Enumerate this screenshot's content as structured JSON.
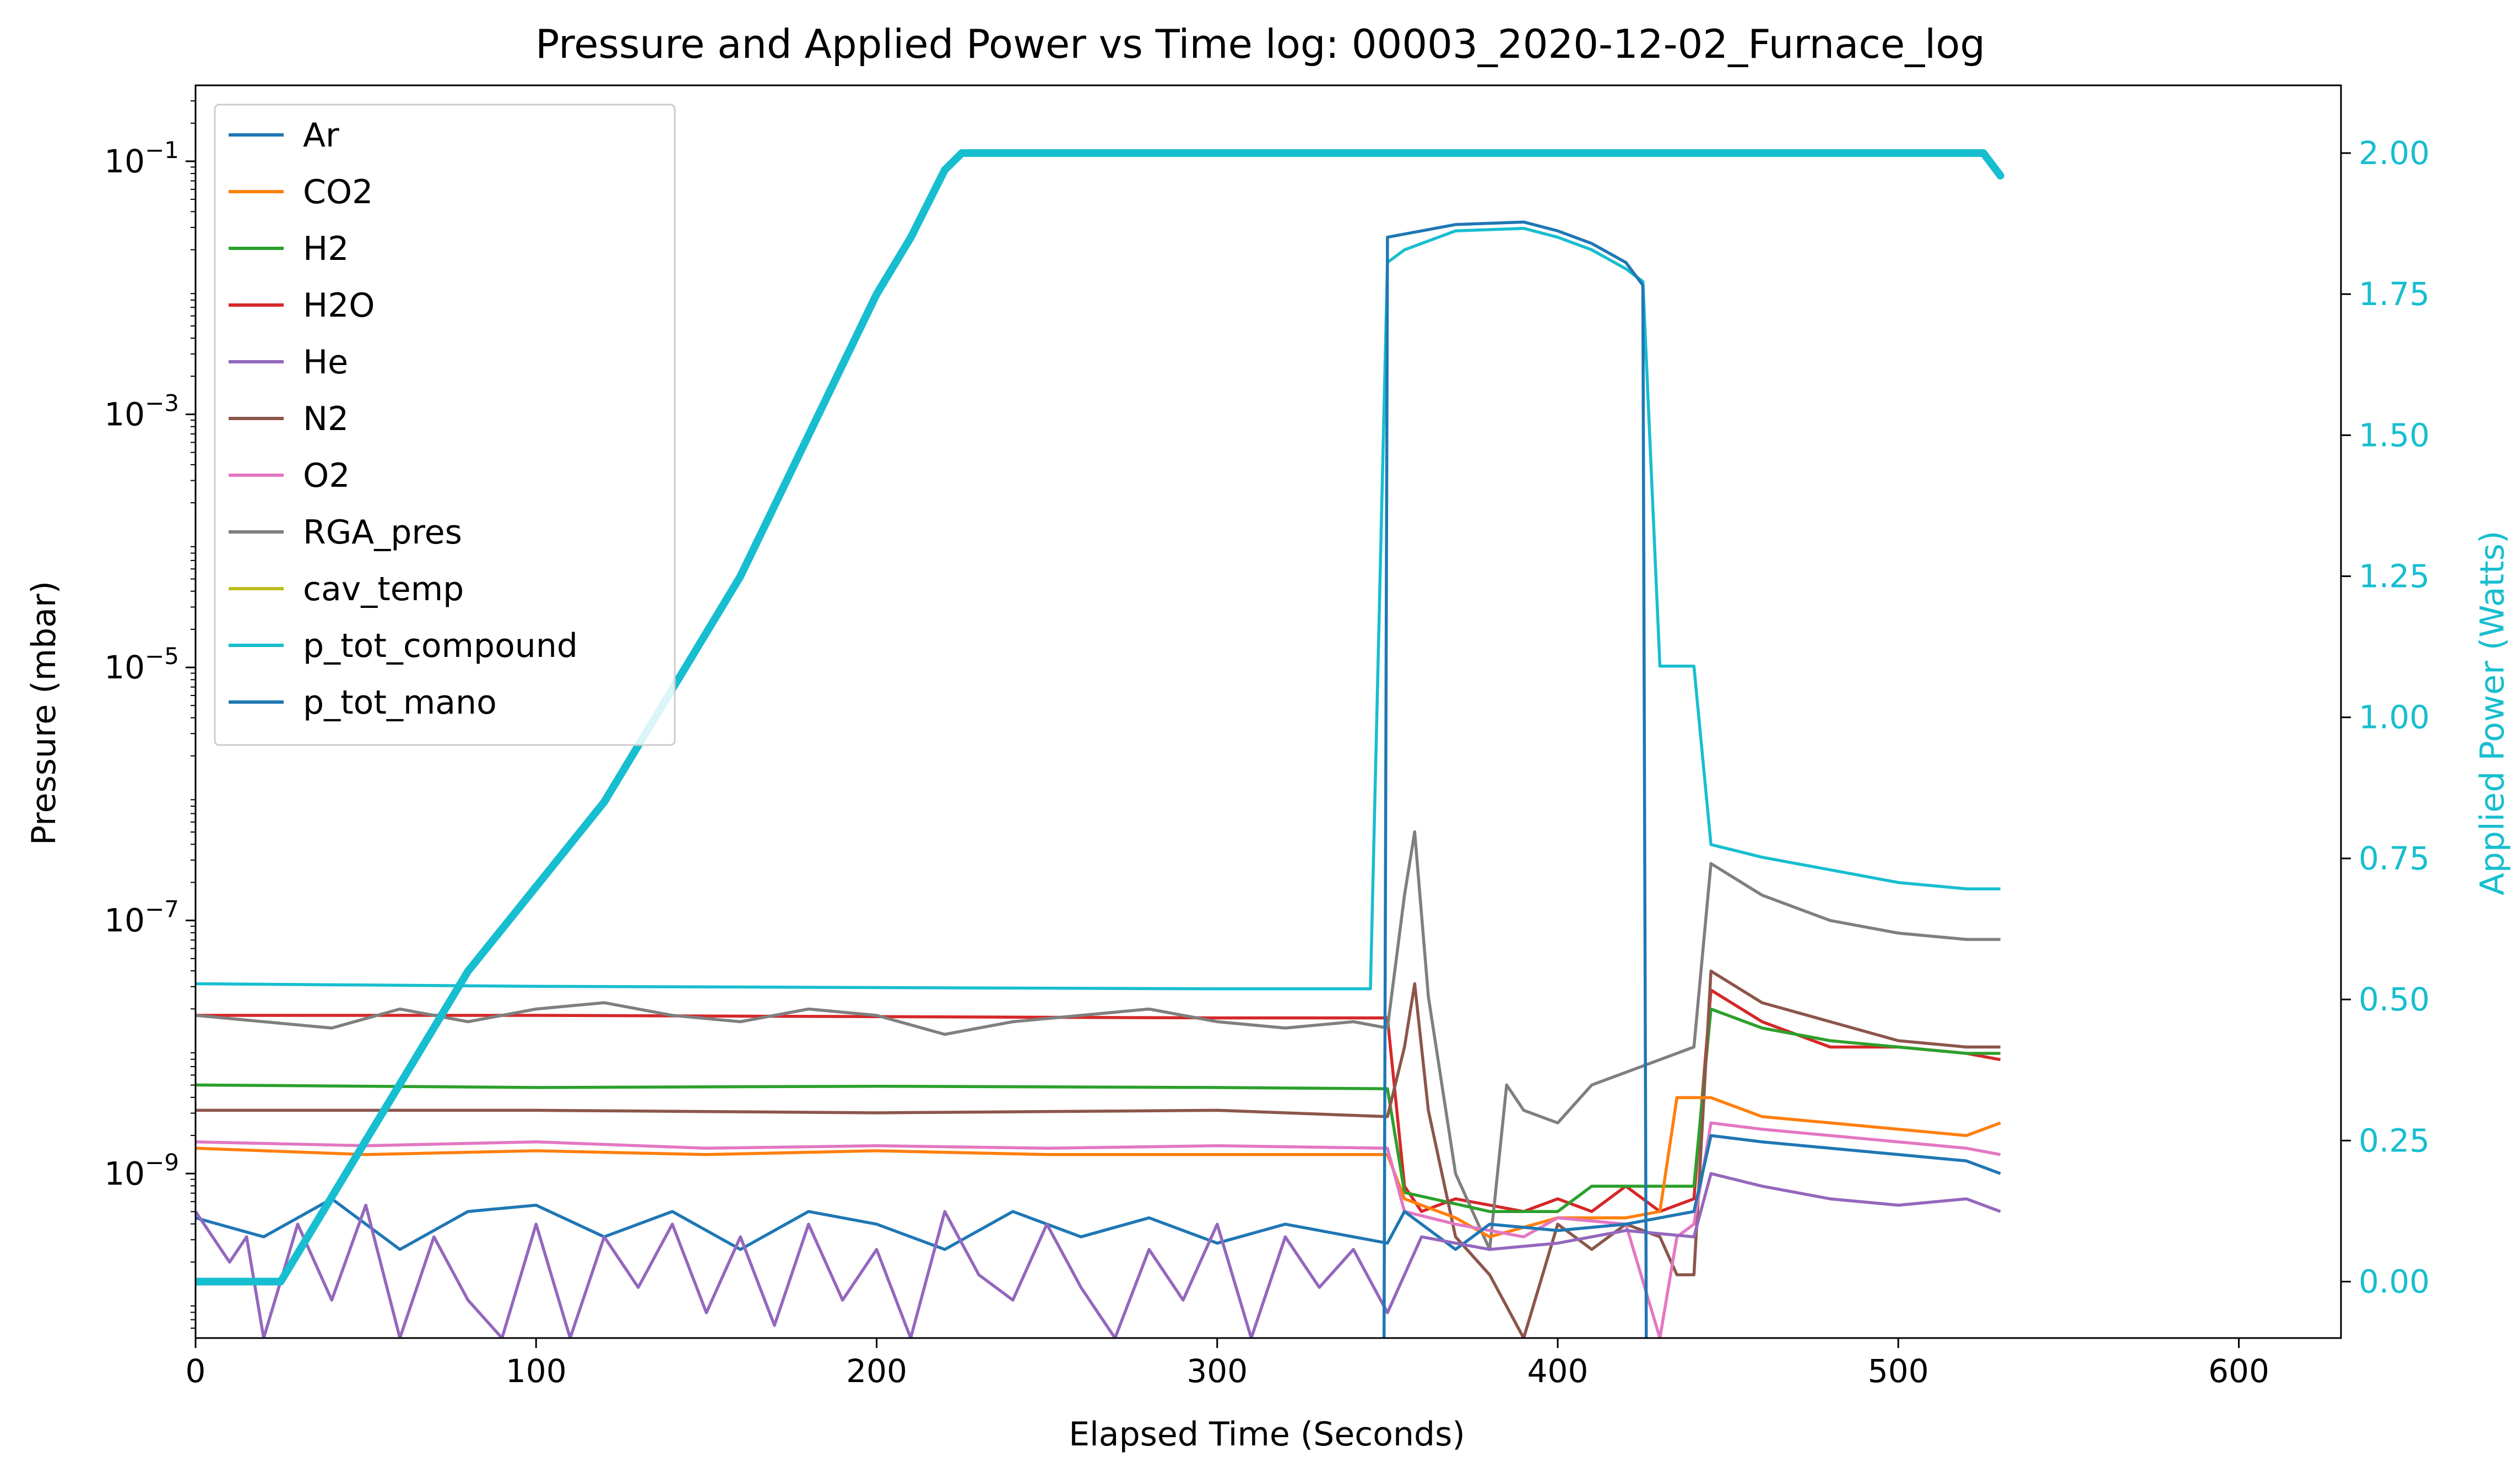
{
  "chart_data": {
    "type": "line",
    "title": "Pressure and Applied Power vs Time log: 00003_2020-12-02_Furnace_log",
    "xlabel": "Elapsed Time (Seconds)",
    "ylabel": "Pressure (mbar)",
    "y2label": "Applied Power (Watts)",
    "xlim": [
      0,
      630
    ],
    "ylim_log10": [
      -10.3,
      -0.4
    ],
    "y2lim": [
      -0.1,
      2.12
    ],
    "yscale": "log",
    "x_ticks": [
      "0",
      "100",
      "200",
      "300",
      "400",
      "500",
      "600"
    ],
    "y_ticks": [
      {
        "base": "10",
        "exp": "−1",
        "log": -1
      },
      {
        "base": "10",
        "exp": "−3",
        "log": -3
      },
      {
        "base": "10",
        "exp": "−5",
        "log": -5
      },
      {
        "base": "10",
        "exp": "−7",
        "log": -7
      },
      {
        "base": "10",
        "exp": "−9",
        "log": -9
      }
    ],
    "y2_ticks": [
      "0.00",
      "0.25",
      "0.50",
      "0.75",
      "1.00",
      "1.25",
      "1.50",
      "1.75",
      "2.00"
    ],
    "legend": {
      "position": "upper-left",
      "entries": [
        {
          "name": "Ar",
          "color": "#1f77b4"
        },
        {
          "name": "CO2",
          "color": "#ff7f0e"
        },
        {
          "name": "H2",
          "color": "#2ca02c"
        },
        {
          "name": "H2O",
          "color": "#d62728"
        },
        {
          "name": "He",
          "color": "#9467bd"
        },
        {
          "name": "N2",
          "color": "#8c564b"
        },
        {
          "name": "O2",
          "color": "#e377c2"
        },
        {
          "name": "RGA_pres",
          "color": "#7f7f7f"
        },
        {
          "name": "cav_temp",
          "color": "#bcbd22"
        },
        {
          "name": "p_tot_compound",
          "color": "#17becf"
        },
        {
          "name": "p_tot_mano",
          "color": "#1f77b4"
        }
      ]
    },
    "series_log10": [
      {
        "name": "H2O",
        "color": "#d62728",
        "points": [
          [
            0,
            -7.75
          ],
          [
            100,
            -7.75
          ],
          [
            200,
            -7.76
          ],
          [
            300,
            -7.77
          ],
          [
            350,
            -7.77
          ],
          [
            355,
            -9.1
          ],
          [
            360,
            -9.3
          ],
          [
            370,
            -9.2
          ],
          [
            380,
            -9.25
          ],
          [
            390,
            -9.3
          ],
          [
            400,
            -9.2
          ],
          [
            410,
            -9.3
          ],
          [
            420,
            -9.1
          ],
          [
            430,
            -9.3
          ],
          [
            440,
            -9.2
          ],
          [
            445,
            -7.55
          ],
          [
            460,
            -7.8
          ],
          [
            480,
            -8.0
          ],
          [
            500,
            -8.0
          ],
          [
            520,
            -8.05
          ],
          [
            530,
            -8.1
          ]
        ]
      },
      {
        "name": "RGA_pres",
        "color": "#7f7f7f",
        "points": [
          [
            0,
            -7.75
          ],
          [
            20,
            -7.8
          ],
          [
            40,
            -7.85
          ],
          [
            60,
            -7.7
          ],
          [
            80,
            -7.8
          ],
          [
            100,
            -7.7
          ],
          [
            120,
            -7.65
          ],
          [
            140,
            -7.75
          ],
          [
            160,
            -7.8
          ],
          [
            180,
            -7.7
          ],
          [
            200,
            -7.75
          ],
          [
            220,
            -7.9
          ],
          [
            240,
            -7.8
          ],
          [
            260,
            -7.75
          ],
          [
            280,
            -7.7
          ],
          [
            300,
            -7.8
          ],
          [
            320,
            -7.85
          ],
          [
            340,
            -7.8
          ],
          [
            350,
            -7.85
          ],
          [
            355,
            -6.8
          ],
          [
            358,
            -6.3
          ],
          [
            362,
            -7.6
          ],
          [
            370,
            -9.0
          ],
          [
            380,
            -9.6
          ],
          [
            385,
            -8.3
          ],
          [
            390,
            -8.5
          ],
          [
            400,
            -8.6
          ],
          [
            410,
            -8.3
          ],
          [
            420,
            -8.2
          ],
          [
            430,
            -8.1
          ],
          [
            440,
            -8.0
          ],
          [
            445,
            -6.55
          ],
          [
            460,
            -6.8
          ],
          [
            480,
            -7.0
          ],
          [
            500,
            -7.1
          ],
          [
            520,
            -7.15
          ],
          [
            530,
            -7.15
          ]
        ]
      },
      {
        "name": "H2",
        "color": "#2ca02c",
        "points": [
          [
            0,
            -8.3
          ],
          [
            100,
            -8.32
          ],
          [
            200,
            -8.31
          ],
          [
            300,
            -8.32
          ],
          [
            350,
            -8.33
          ],
          [
            355,
            -9.15
          ],
          [
            380,
            -9.3
          ],
          [
            400,
            -9.3
          ],
          [
            410,
            -9.1
          ],
          [
            420,
            -9.1
          ],
          [
            440,
            -9.1
          ],
          [
            445,
            -7.7
          ],
          [
            460,
            -7.85
          ],
          [
            480,
            -7.95
          ],
          [
            500,
            -8.0
          ],
          [
            520,
            -8.05
          ],
          [
            530,
            -8.05
          ]
        ]
      },
      {
        "name": "N2",
        "color": "#8c564b",
        "points": [
          [
            0,
            -8.5
          ],
          [
            100,
            -8.5
          ],
          [
            200,
            -8.52
          ],
          [
            300,
            -8.5
          ],
          [
            350,
            -8.55
          ],
          [
            355,
            -8.0
          ],
          [
            358,
            -7.5
          ],
          [
            362,
            -8.5
          ],
          [
            370,
            -9.5
          ],
          [
            380,
            -9.8
          ],
          [
            390,
            -10.3
          ],
          [
            400,
            -9.4
          ],
          [
            410,
            -9.6
          ],
          [
            420,
            -9.4
          ],
          [
            430,
            -9.5
          ],
          [
            435,
            -9.8
          ],
          [
            440,
            -9.8
          ],
          [
            445,
            -7.4
          ],
          [
            460,
            -7.65
          ],
          [
            480,
            -7.8
          ],
          [
            500,
            -7.95
          ],
          [
            520,
            -8.0
          ],
          [
            530,
            -8.0
          ]
        ]
      },
      {
        "name": "CO2",
        "color": "#ff7f0e",
        "points": [
          [
            0,
            -8.8
          ],
          [
            50,
            -8.85
          ],
          [
            100,
            -8.82
          ],
          [
            150,
            -8.85
          ],
          [
            200,
            -8.82
          ],
          [
            250,
            -8.85
          ],
          [
            300,
            -8.85
          ],
          [
            350,
            -8.85
          ],
          [
            355,
            -9.2
          ],
          [
            370,
            -9.35
          ],
          [
            380,
            -9.5
          ],
          [
            400,
            -9.35
          ],
          [
            420,
            -9.35
          ],
          [
            430,
            -9.3
          ],
          [
            435,
            -8.4
          ],
          [
            445,
            -8.4
          ],
          [
            460,
            -8.55
          ],
          [
            480,
            -8.6
          ],
          [
            500,
            -8.65
          ],
          [
            520,
            -8.7
          ],
          [
            530,
            -8.6
          ]
        ]
      },
      {
        "name": "O2",
        "color": "#e377c2",
        "points": [
          [
            0,
            -8.75
          ],
          [
            50,
            -8.78
          ],
          [
            100,
            -8.75
          ],
          [
            150,
            -8.8
          ],
          [
            200,
            -8.78
          ],
          [
            250,
            -8.8
          ],
          [
            300,
            -8.78
          ],
          [
            350,
            -8.8
          ],
          [
            355,
            -9.3
          ],
          [
            370,
            -9.4
          ],
          [
            390,
            -9.5
          ],
          [
            400,
            -9.35
          ],
          [
            420,
            -9.4
          ],
          [
            430,
            -10.3
          ],
          [
            435,
            -9.5
          ],
          [
            440,
            -9.4
          ],
          [
            445,
            -8.6
          ],
          [
            460,
            -8.65
          ],
          [
            480,
            -8.7
          ],
          [
            500,
            -8.75
          ],
          [
            520,
            -8.8
          ],
          [
            530,
            -8.85
          ]
        ]
      },
      {
        "name": "Ar",
        "color": "#1f77b4",
        "points": [
          [
            0,
            -9.35
          ],
          [
            20,
            -9.5
          ],
          [
            40,
            -9.2
          ],
          [
            60,
            -9.6
          ],
          [
            80,
            -9.3
          ],
          [
            100,
            -9.25
          ],
          [
            120,
            -9.5
          ],
          [
            140,
            -9.3
          ],
          [
            160,
            -9.6
          ],
          [
            180,
            -9.3
          ],
          [
            200,
            -9.4
          ],
          [
            220,
            -9.6
          ],
          [
            240,
            -9.3
          ],
          [
            260,
            -9.5
          ],
          [
            280,
            -9.35
          ],
          [
            300,
            -9.55
          ],
          [
            320,
            -9.4
          ],
          [
            340,
            -9.5
          ],
          [
            350,
            -9.55
          ],
          [
            355,
            -9.3
          ],
          [
            370,
            -9.6
          ],
          [
            380,
            -9.4
          ],
          [
            400,
            -9.45
          ],
          [
            420,
            -9.4
          ],
          [
            440,
            -9.3
          ],
          [
            445,
            -8.7
          ],
          [
            460,
            -8.75
          ],
          [
            480,
            -8.8
          ],
          [
            500,
            -8.85
          ],
          [
            520,
            -8.9
          ],
          [
            530,
            -9.0
          ]
        ]
      },
      {
        "name": "He",
        "color": "#9467bd",
        "points": [
          [
            0,
            -9.3
          ],
          [
            10,
            -9.7
          ],
          [
            15,
            -9.5
          ],
          [
            20,
            -10.3
          ],
          [
            30,
            -9.4
          ],
          [
            40,
            -10.0
          ],
          [
            50,
            -9.25
          ],
          [
            60,
            -10.3
          ],
          [
            70,
            -9.5
          ],
          [
            80,
            -10.0
          ],
          [
            90,
            -10.3
          ],
          [
            100,
            -9.4
          ],
          [
            110,
            -10.3
          ],
          [
            120,
            -9.5
          ],
          [
            130,
            -9.9
          ],
          [
            140,
            -9.4
          ],
          [
            150,
            -10.1
          ],
          [
            160,
            -9.5
          ],
          [
            170,
            -10.2
          ],
          [
            180,
            -9.4
          ],
          [
            190,
            -10.0
          ],
          [
            200,
            -9.6
          ],
          [
            210,
            -10.3
          ],
          [
            220,
            -9.3
          ],
          [
            230,
            -9.8
          ],
          [
            240,
            -10.0
          ],
          [
            250,
            -9.4
          ],
          [
            260,
            -9.9
          ],
          [
            270,
            -10.3
          ],
          [
            280,
            -9.6
          ],
          [
            290,
            -10.0
          ],
          [
            300,
            -9.4
          ],
          [
            310,
            -10.3
          ],
          [
            320,
            -9.5
          ],
          [
            330,
            -9.9
          ],
          [
            340,
            -9.6
          ],
          [
            350,
            -10.1
          ],
          [
            360,
            -9.5
          ],
          [
            380,
            -9.6
          ],
          [
            400,
            -9.55
          ],
          [
            420,
            -9.45
          ],
          [
            440,
            -9.5
          ],
          [
            445,
            -9.0
          ],
          [
            460,
            -9.1
          ],
          [
            480,
            -9.2
          ],
          [
            500,
            -9.25
          ],
          [
            520,
            -9.2
          ],
          [
            530,
            -9.3
          ]
        ]
      },
      {
        "name": "p_tot_compound",
        "color": "#17becf",
        "points": [
          [
            0,
            -7.5
          ],
          [
            100,
            -7.52
          ],
          [
            200,
            -7.53
          ],
          [
            300,
            -7.54
          ],
          [
            345,
            -7.54
          ],
          [
            350,
            -1.8
          ],
          [
            355,
            -1.7
          ],
          [
            370,
            -1.55
          ],
          [
            390,
            -1.53
          ],
          [
            400,
            -1.6
          ],
          [
            410,
            -1.7
          ],
          [
            420,
            -1.85
          ],
          [
            425,
            -1.95
          ],
          [
            430,
            -4.99
          ],
          [
            440,
            -4.99
          ],
          [
            445,
            -6.4
          ],
          [
            460,
            -6.5
          ],
          [
            480,
            -6.6
          ],
          [
            500,
            -6.7
          ],
          [
            520,
            -6.75
          ],
          [
            530,
            -6.75
          ]
        ]
      },
      {
        "name": "p_tot_mano",
        "color": "#1f77b4",
        "points": [
          [
            349,
            -10.3
          ],
          [
            350,
            -1.6
          ],
          [
            360,
            -1.55
          ],
          [
            370,
            -1.5
          ],
          [
            390,
            -1.48
          ],
          [
            400,
            -1.55
          ],
          [
            410,
            -1.65
          ],
          [
            420,
            -1.8
          ],
          [
            425,
            -1.98
          ],
          [
            426,
            -10.3
          ]
        ]
      }
    ],
    "power_series": {
      "name": "Applied Power",
      "color": "#17becf",
      "axis": "right",
      "points": [
        [
          0,
          0.0
        ],
        [
          25,
          0.0
        ],
        [
          35,
          0.1
        ],
        [
          50,
          0.25
        ],
        [
          65,
          0.4
        ],
        [
          80,
          0.55
        ],
        [
          100,
          0.7
        ],
        [
          120,
          0.85
        ],
        [
          140,
          1.05
        ],
        [
          160,
          1.25
        ],
        [
          180,
          1.5
        ],
        [
          200,
          1.75
        ],
        [
          210,
          1.85
        ],
        [
          220,
          1.97
        ],
        [
          225,
          2.0
        ],
        [
          300,
          2.0
        ],
        [
          400,
          2.0
        ],
        [
          500,
          2.0
        ],
        [
          525,
          2.0
        ],
        [
          530,
          1.96
        ]
      ]
    }
  }
}
